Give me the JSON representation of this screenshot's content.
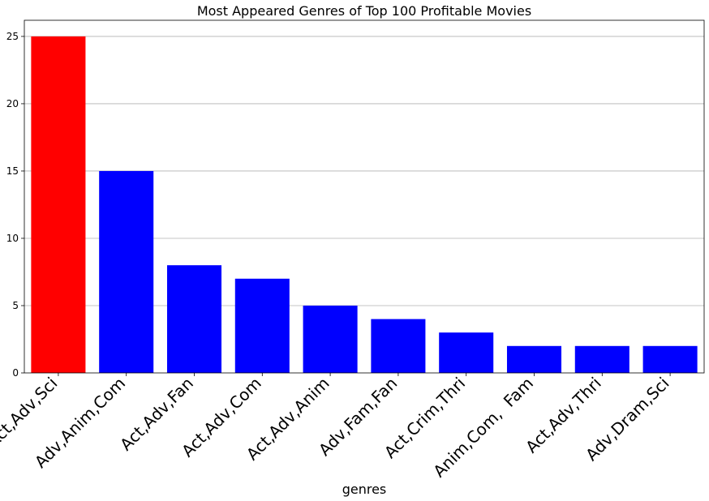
{
  "chart_data": {
    "type": "bar",
    "title": "Most Appeared Genres of Top 100 Profitable Movies",
    "xlabel": "genres",
    "ylabel": "",
    "categories": [
      "Act,Adv,Sci",
      "Adv,Anim,Com",
      "Act,Adv,Fan",
      "Act,Adv,Com",
      "Act,Adv,Anim",
      "Adv,Fam,Fan",
      "Act,Crim,Thri",
      "Anim,Com,  Fam",
      "Act,Adv,Thri",
      "Adv,Dram,Sci"
    ],
    "values": [
      25,
      15,
      8,
      7,
      5,
      4,
      3,
      2,
      2,
      2
    ],
    "bar_colors": [
      "#ff0000",
      "#0000ff",
      "#0000ff",
      "#0000ff",
      "#0000ff",
      "#0000ff",
      "#0000ff",
      "#0000ff",
      "#0000ff",
      "#0000ff"
    ],
    "ylim": [
      0,
      26.2
    ],
    "yticks": [
      0,
      5,
      10,
      15,
      20,
      25
    ],
    "grid": "y-axis only",
    "legend": "none"
  }
}
